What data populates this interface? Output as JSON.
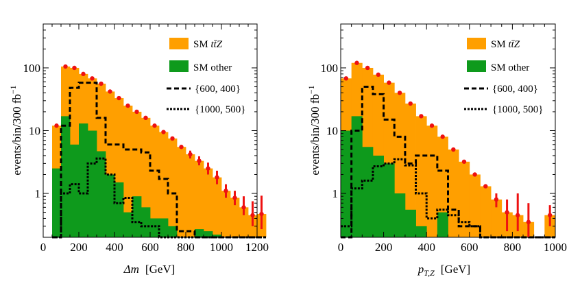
{
  "chart_data": [
    {
      "type": "histogram",
      "xlabel_symbol": "Δm",
      "xlabel_unit": "[GeV]",
      "ylabel": "events/bin/300 fb",
      "ylabel_sup": "−1",
      "y_scale": "log",
      "xlim": [
        0,
        1200
      ],
      "ylim": [
        0.2,
        500
      ],
      "x_ticks": [
        0,
        200,
        400,
        600,
        800,
        1000,
        1200
      ],
      "x_tick_labels": [
        "0",
        "200",
        "400",
        "600",
        "800",
        "1000",
        "1200"
      ],
      "y_ticks": [
        1,
        10,
        100
      ],
      "y_tick_labels": [
        "1",
        "10",
        "100"
      ],
      "bin_edges": [
        50,
        100,
        150,
        200,
        250,
        300,
        350,
        400,
        450,
        500,
        550,
        600,
        650,
        700,
        750,
        800,
        850,
        900,
        950,
        1000,
        1050,
        1100,
        1150,
        1200
      ],
      "legend": {
        "position": "top-right",
        "entries": [
          {
            "label": "SM ",
            "label_math": "tt̄Z",
            "style": "orange-fill"
          },
          {
            "label": "SM other",
            "label_math": "",
            "style": "green-fill"
          },
          {
            "label": "{600, 400}",
            "label_math": "",
            "style": "dashed"
          },
          {
            "label": "{1000, 500}",
            "label_math": "",
            "style": "dotted"
          }
        ]
      },
      "series": [
        {
          "name": "SM ttZ (stacked total)",
          "color": "#ff9f00",
          "values": [
            12,
            105,
            100,
            80,
            68,
            56,
            42,
            33,
            25,
            20,
            16,
            12,
            9.5,
            7.5,
            5.5,
            4.2,
            3.3,
            2.5,
            1.8,
            1.1,
            0.85,
            0.6,
            0.45,
            0.47
          ]
        },
        {
          "name": "SM other",
          "color": "#0e9a1c",
          "values": [
            2.5,
            17,
            6,
            13,
            10,
            4.7,
            2,
            1.5,
            0.5,
            0.9,
            0.6,
            0.4,
            0.4,
            0.3,
            0.15,
            0.15,
            0.27,
            0.25,
            0.22,
            0.15,
            0.15,
            0.15,
            0.15,
            0.15
          ]
        },
        {
          "name": "{600, 400}",
          "style": "dashed",
          "values": [
            0.15,
            12,
            48,
            58,
            58,
            16,
            6,
            6,
            5,
            5,
            4.5,
            2.3,
            1.7,
            1.0,
            0.25,
            0.25,
            0.15,
            0.15,
            0.15,
            0.15,
            0.15,
            0.15,
            0.15,
            0.15
          ]
        },
        {
          "name": "{1000, 500}",
          "style": "dotted",
          "values": [
            0.15,
            1.0,
            1.4,
            1.0,
            3.0,
            3.6,
            2.0,
            0.7,
            0.85,
            0.35,
            0.3,
            0.3,
            0.15,
            0.15,
            0.15,
            0.15,
            0.15,
            0.15,
            0.15,
            0.15,
            0.15,
            0.15,
            0.15,
            0.15
          ]
        },
        {
          "name": "data points",
          "color": "#ee1111",
          "values": [
            12,
            105,
            100,
            80,
            68,
            56,
            42,
            33,
            25,
            20,
            16,
            12,
            9.5,
            7.5,
            5.5,
            4.2,
            3.3,
            2.5,
            1.8,
            1.1,
            0.85,
            0.6,
            0.45,
            0.47
          ],
          "err_hi": [
            0,
            0,
            0,
            0,
            0,
            0,
            0,
            0,
            0,
            0,
            0,
            0,
            0,
            0,
            0,
            0.6,
            0.6,
            0.6,
            0.5,
            0.3,
            0.25,
            0.3,
            0.3,
            0.45
          ],
          "err_lo": [
            0,
            0,
            0,
            0,
            0,
            0,
            0,
            0,
            0,
            0,
            0,
            0,
            0,
            0,
            0,
            0.6,
            0.5,
            0.5,
            0.4,
            0.25,
            0.2,
            0.15,
            0.15,
            0.2
          ]
        }
      ]
    },
    {
      "type": "histogram",
      "xlabel_symbol": "p",
      "xlabel_sub": "T,Z",
      "xlabel_unit": "[GeV]",
      "ylabel": "events/bin/300 fb",
      "ylabel_sup": "−1",
      "y_scale": "log",
      "xlim": [
        0,
        1000
      ],
      "ylim": [
        0.2,
        500
      ],
      "x_ticks": [
        0,
        200,
        400,
        600,
        800,
        1000
      ],
      "x_tick_labels": [
        "0",
        "200",
        "400",
        "600",
        "800",
        "1000"
      ],
      "y_ticks": [
        1,
        10,
        100
      ],
      "y_tick_labels": [
        "1",
        "10",
        "100"
      ],
      "bin_edges": [
        0,
        50,
        100,
        150,
        200,
        250,
        300,
        350,
        400,
        450,
        500,
        550,
        600,
        650,
        700,
        750,
        800,
        850,
        900,
        950
      ],
      "legend": {
        "position": "top-right",
        "entries": [
          {
            "label": "SM ",
            "label_math": "tt̄Z",
            "style": "orange-fill"
          },
          {
            "label": "SM other",
            "label_math": "",
            "style": "green-fill"
          },
          {
            "label": "{600, 400}",
            "label_math": "",
            "style": "dashed"
          },
          {
            "label": "{1000, 500}",
            "label_math": "",
            "style": "dotted"
          }
        ]
      },
      "series": [
        {
          "name": "SM ttZ (stacked total)",
          "color": "#ff9f00",
          "values": [
            68,
            120,
            100,
            78,
            58,
            40,
            27,
            17,
            12,
            8,
            5,
            3.2,
            2,
            1.3,
            0.8,
            0.5,
            0.45,
            0.35,
            0,
            0.45
          ]
        },
        {
          "name": "SM other",
          "color": "#0e9a1c",
          "values": [
            10,
            17,
            5.5,
            4,
            3,
            1.0,
            0.55,
            0.3,
            0.2,
            0.5,
            0.15,
            0.15,
            0.15,
            0.15,
            0.15,
            0.15,
            0.15,
            0.15,
            0.15,
            0.15
          ]
        },
        {
          "name": "{600, 400}",
          "style": "dashed",
          "values": [
            0.15,
            10,
            50,
            38,
            15,
            8,
            3,
            4,
            4,
            2.3,
            0.55,
            0.3,
            0.3,
            0.15,
            0.15,
            0.15,
            0.15,
            0.15,
            0.15,
            0.15
          ]
        },
        {
          "name": "{1000, 500}",
          "style": "dotted",
          "values": [
            0.3,
            1.2,
            1.6,
            2.7,
            3.0,
            3.5,
            2.8,
            1.0,
            0.4,
            0.55,
            0.45,
            0.35,
            0.3,
            0.15,
            0.15,
            0.15,
            0.15,
            0.15,
            0.15,
            0.15
          ]
        },
        {
          "name": "data points",
          "color": "#ee1111",
          "values": [
            68,
            120,
            100,
            78,
            58,
            40,
            27,
            17,
            12,
            8,
            5,
            3.2,
            2,
            1.3,
            0.8,
            0.5,
            0.45,
            0.35,
            0,
            0.45
          ],
          "err_hi": [
            0,
            0,
            0,
            0,
            0,
            0,
            0,
            0,
            0,
            0,
            0,
            0,
            0,
            0,
            0.2,
            0.3,
            0.55,
            0.35,
            0,
            0.2
          ],
          "err_lo": [
            0,
            0,
            0,
            0,
            0,
            0,
            0,
            0,
            0,
            0,
            0,
            0,
            0,
            0,
            0.2,
            0.25,
            0.2,
            0.15,
            0,
            0.15
          ]
        }
      ]
    }
  ]
}
